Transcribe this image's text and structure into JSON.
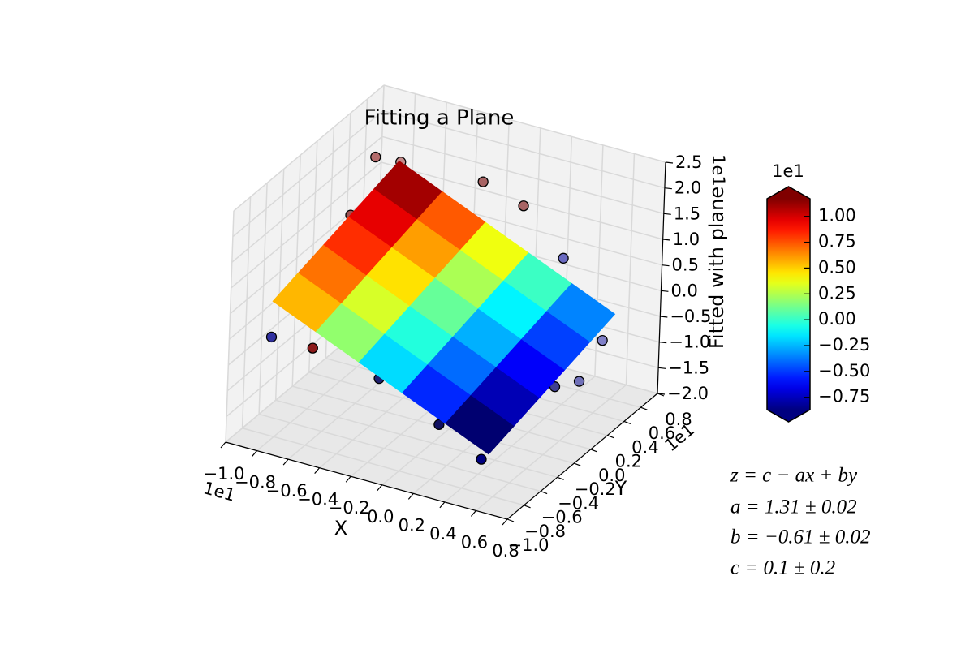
{
  "chart_data": {
    "type": "surface3d",
    "title": "Fitting a Plane",
    "x_label": "X",
    "y_label": "Y",
    "z_label": "Fitted with plane",
    "x_offset_text": "1e1",
    "y_offset_text": "1e1",
    "z_offset_text": "1e1",
    "xlim": [
      -1.0,
      0.8
    ],
    "ylim": [
      -1.0,
      0.8
    ],
    "zlim": [
      -2.0,
      2.5
    ],
    "xticks": [
      {
        "value": -1.0,
        "label": "−1.0"
      },
      {
        "value": -0.8,
        "label": "−0.8"
      },
      {
        "value": -0.6,
        "label": "−0.6"
      },
      {
        "value": -0.4,
        "label": "−0.4"
      },
      {
        "value": -0.2,
        "label": "−0.2"
      },
      {
        "value": 0,
        "label": "0.0"
      },
      0.2,
      0.4,
      0.6,
      0.8
    ],
    "yticks": [
      {
        "value": -1.0,
        "label": "−1.0"
      },
      {
        "value": -0.8,
        "label": "−0.8"
      },
      {
        "value": -0.6,
        "label": "−0.6"
      },
      {
        "value": -0.4,
        "label": "−0.4"
      },
      {
        "value": -0.2,
        "label": "−0.2"
      },
      {
        "value": 0,
        "label": "0.0"
      },
      0.2,
      0.4,
      0.6,
      0.8
    ],
    "zticks": [
      {
        "value": -2.0,
        "label": "−2.0"
      },
      {
        "value": -1.5,
        "label": "−1.5"
      },
      {
        "value": -1.0,
        "label": "−1.0"
      },
      {
        "value": -0.5,
        "label": "−0.5"
      },
      {
        "value": 0,
        "label": "0.0"
      },
      0.5,
      {
        "value": 1,
        "label": "1.0"
      },
      1.5,
      {
        "value": 2,
        "label": "2.0"
      },
      2.5
    ],
    "grid": true,
    "surface": {
      "x": [
        -0.82,
        -0.54,
        -0.26,
        0.02,
        0.3,
        0.58
      ],
      "y": [
        -0.83,
        -0.53,
        -0.23,
        0.07,
        0.37,
        0.67
      ],
      "z": [
        [
          0.662,
          0.8,
          0.937,
          1.075,
          1.212,
          1.35
        ],
        [
          0.3,
          0.437,
          0.575,
          0.712,
          0.85,
          0.987
        ],
        [
          -0.063,
          0.075,
          0.212,
          0.35,
          0.487,
          0.625
        ],
        [
          -0.425,
          -0.288,
          -0.15,
          -0.013,
          0.125,
          0.262
        ],
        [
          -0.788,
          -0.65,
          -0.513,
          -0.375,
          -0.238,
          -0.1
        ],
        [
          -1.15,
          -1.013,
          -0.875,
          -0.738,
          -0.6,
          -0.463
        ]
      ]
    },
    "scatter": {
      "x": [
        -0.77,
        -0.62,
        -0.51,
        -0.11,
        0.08,
        -0.7,
        0.2,
        0.66,
        0.64,
        0.41,
        0.47,
        -0.81,
        -0.49,
        -0.34,
        0.07,
        0.33
      ],
      "y": [
        0.28,
        0.3,
        0.3,
        0.33,
        0.47,
        -0.14,
        0.75,
        0.37,
        0.14,
        0.29,
        -0.08,
        -0.85,
        -0.96,
        -0.42,
        -0.46,
        -0.43
      ],
      "z": [
        2.0,
        2.0,
        1.5,
        2.0,
        1.5,
        1.5,
        0.2,
        -0.5,
        -1.0,
        -1.5,
        -1.0,
        0.0,
        0.2,
        -1.0,
        -1.5,
        -2.0
      ],
      "colors": [
        "#b36b6b",
        "#c48a8a",
        "#a05050",
        "#a86464",
        "#a86464",
        "#a05050",
        "#6a6ac0",
        "#8080c8",
        "#7070b8",
        "#404090",
        "#2a2a80",
        "#3030a0",
        "#8b1a1a",
        "#202070",
        "#101060",
        "#000080"
      ]
    },
    "colorbar": {
      "label": "1e1",
      "lim": [
        -0.87,
        1.17
      ],
      "ticks": [
        {
          "value": -0.75,
          "label": "−0.75"
        },
        {
          "value": -0.5,
          "label": "−0.50"
        },
        {
          "value": -0.25,
          "label": "−0.25"
        },
        {
          "value": 0,
          "label": "0.00"
        },
        0.25,
        {
          "value": 0.5,
          "label": "0.50"
        },
        0.75,
        {
          "value": 1,
          "label": "1.00"
        }
      ]
    },
    "annotations": [
      "z = c − ax + by",
      "a = 1.31 ± 0.02",
      "b = −0.61 ± 0.02",
      "c = 0.1 ± 0.2"
    ]
  }
}
